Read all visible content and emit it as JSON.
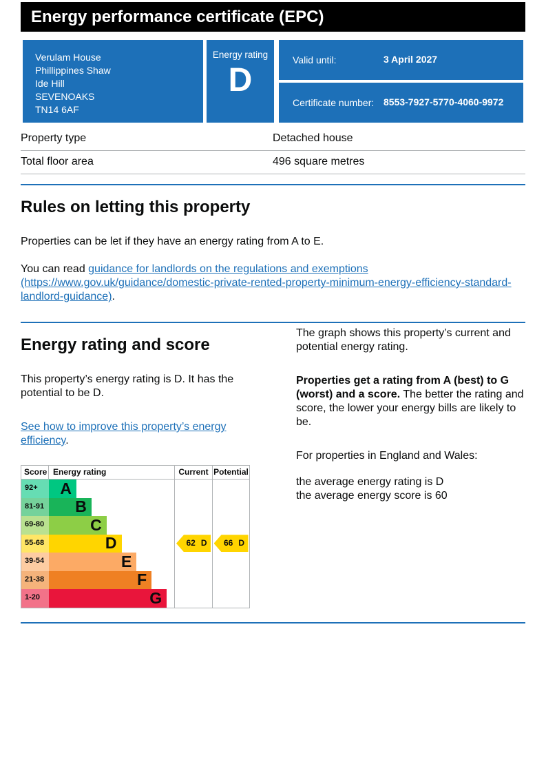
{
  "banner": {
    "title": "Energy performance certificate (EPC)"
  },
  "summary": {
    "address_lines": [
      "Verulam House",
      "Phillippines Shaw",
      "Ide Hill",
      "SEVENOAKS",
      "TN14 6AF"
    ],
    "energy_rating_label": "Energy rating",
    "energy_rating": "D",
    "valid_until_label": "Valid until:",
    "valid_until_value": "3 April 2027",
    "certificate_number_label": "Certificate number:",
    "certificate_number_value": "8553-7927-5770-4060-9972"
  },
  "property_table": {
    "rows": [
      {
        "label": "Property type",
        "value": "Detached house"
      },
      {
        "label": "Total floor area",
        "value": "496 square metres"
      }
    ]
  },
  "rules_section": {
    "heading": "Rules on letting this property",
    "paragraph1": "Properties can be let if they have an energy rating from A to E.",
    "paragraph2_prefix": "You can read ",
    "link_text": "guidance for landlords on the regulations and exemptions (https://www.gov.uk/guidance/domestic-private-rented-property-minimum-energy-efficiency-standard-landlord-guidance)",
    "paragraph2_suffix": "."
  },
  "rating_section": {
    "heading": "Energy rating and score",
    "paragraph1": "This property’s energy rating is D. It has the potential to be D.",
    "link_text": "See how to improve this property’s energy efficiency",
    "link_suffix": ".",
    "right_paragraph1": "The graph shows this property’s current and potential energy rating.",
    "right_paragraph2_bold": "Properties get a rating from A (best) to G (worst) and a score.",
    "right_paragraph2_rest": " The better the rating and score, the lower your energy bills are likely to be.",
    "right_paragraph3": "For properties in England and Wales:",
    "average_rating_line": "the average energy rating is D",
    "average_score_line": "the average energy score is 60"
  },
  "chart_data": {
    "type": "epc-rating-bands",
    "columns": [
      "Score",
      "Energy rating",
      "Current",
      "Potential"
    ],
    "bands": [
      {
        "score": "92+",
        "letter": "A",
        "color": "#00c781",
        "tint": "#66ddb3",
        "width_pct": 22
      },
      {
        "score": "81-91",
        "letter": "B",
        "color": "#19b459",
        "tint": "#75d29b",
        "width_pct": 34
      },
      {
        "score": "69-80",
        "letter": "C",
        "color": "#8dce46",
        "tint": "#bae190",
        "width_pct": 46
      },
      {
        "score": "55-68",
        "letter": "D",
        "color": "#ffd500",
        "tint": "#ffe666",
        "width_pct": 58
      },
      {
        "score": "39-54",
        "letter": "E",
        "color": "#fcaa65",
        "tint": "#fdcca2",
        "width_pct": 70
      },
      {
        "score": "21-38",
        "letter": "F",
        "color": "#ef8023",
        "tint": "#f5b37b",
        "width_pct": 82
      },
      {
        "score": "1-20",
        "letter": "G",
        "color": "#e9153b",
        "tint": "#f27289",
        "width_pct": 94
      }
    ],
    "current": {
      "score": 62,
      "letter": "D",
      "band_index": 3,
      "color": "#ffd500"
    },
    "potential": {
      "score": 66,
      "letter": "D",
      "band_index": 3,
      "color": "#ffd500"
    }
  },
  "colors": {
    "brand_blue": "#1d70b8",
    "header_bg": "#000000",
    "text": "#0b0c0c",
    "border_gray": "#b1b4b6",
    "link": "#1d70b8"
  }
}
